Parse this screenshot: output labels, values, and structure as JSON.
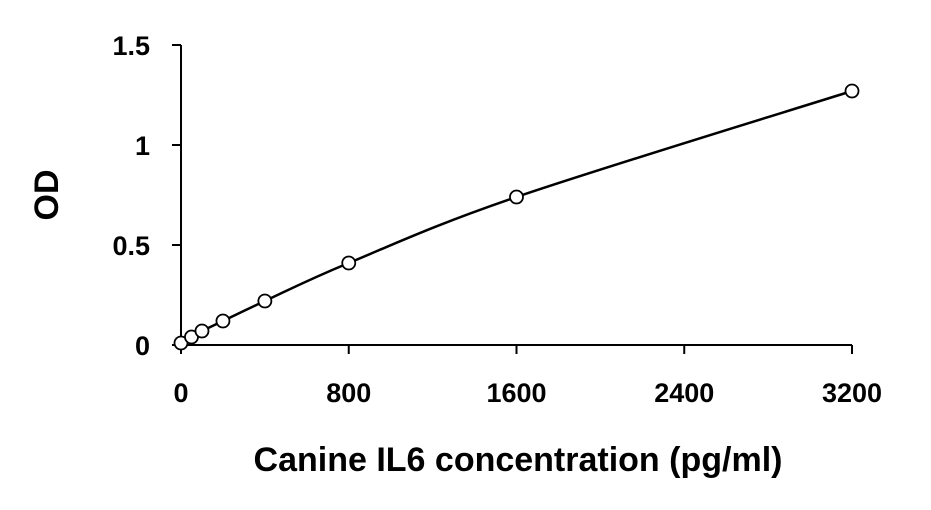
{
  "chart_data": {
    "type": "scatter",
    "title": "",
    "xlabel": "Canine IL6 concentration (pg/ml)",
    "ylabel": "OD",
    "xlim": [
      0,
      3200
    ],
    "ylim": [
      0,
      1.5
    ],
    "xticks": [
      0,
      800,
      1600,
      2400,
      3200
    ],
    "xtick_labels": [
      "0",
      "800",
      "1600",
      "2400",
      "3200"
    ],
    "yticks": [
      0,
      0.5,
      1,
      1.5
    ],
    "ytick_labels": [
      "0",
      "0.5",
      "1",
      "1.5"
    ],
    "grid": false,
    "legend": "none",
    "series": [
      {
        "marker": "open-circle",
        "trendline": "smooth",
        "x": [
          0,
          50,
          100,
          200,
          400,
          800,
          1600,
          3200
        ],
        "y": [
          0.01,
          0.04,
          0.07,
          0.12,
          0.22,
          0.41,
          0.74,
          1.27
        ]
      }
    ],
    "colors": {
      "axis": "#000000",
      "line": "#000000",
      "marker_fill": "#ffffff"
    }
  }
}
